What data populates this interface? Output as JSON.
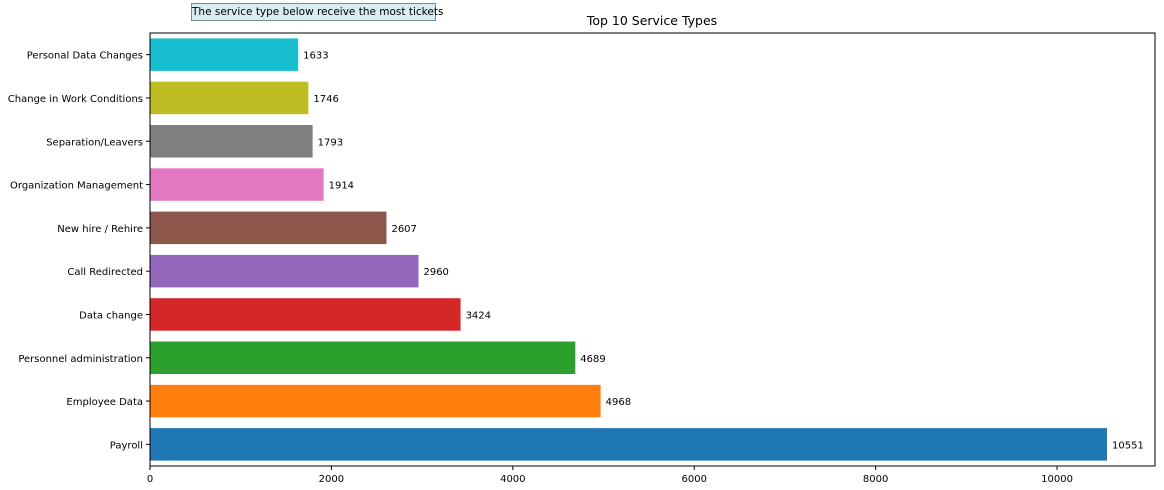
{
  "chart_data": {
    "type": "bar",
    "orientation": "horizontal",
    "title": "Top 10 Service Types",
    "annotation": "The service type below receive the most tickets",
    "xlabel": "",
    "ylabel": "",
    "xlim": [
      0,
      11080
    ],
    "xticks": [
      0,
      2000,
      4000,
      6000,
      8000,
      10000
    ],
    "grid": false,
    "categories": [
      "Payroll",
      "Employee Data",
      "Personnel administration",
      "Data change",
      "Call Redirected",
      "New hire / Rehire",
      "Organization Management",
      "Separation/Leavers",
      "Change in Work Conditions",
      "Personal Data Changes"
    ],
    "values": [
      10551,
      4968,
      4689,
      3424,
      2960,
      2607,
      1914,
      1793,
      1746,
      1633
    ],
    "colors": [
      "#1f77b4",
      "#ff7f0e",
      "#2ca02c",
      "#d62728",
      "#9467bd",
      "#8c564b",
      "#e377c2",
      "#7f7f7f",
      "#bcbd22",
      "#17becf"
    ]
  }
}
